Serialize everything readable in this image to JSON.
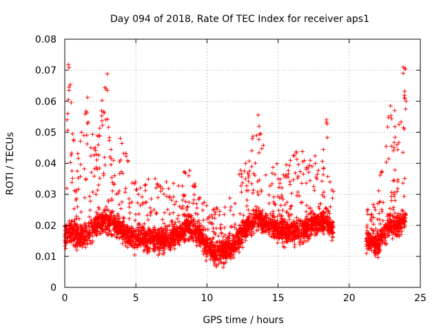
{
  "chart_data": {
    "type": "scatter",
    "title": "Day 094 of 2018, Rate Of TEC Index for receiver aps1",
    "xlabel": "GPS time / hours",
    "ylabel": "ROTI / TECUs",
    "xlim": [
      0,
      25
    ],
    "ylim": [
      0,
      0.08
    ],
    "x_ticks": [
      0,
      5,
      10,
      15,
      20,
      25
    ],
    "y_ticks": [
      0,
      0.01,
      0.02,
      0.03,
      0.04,
      0.05,
      0.06,
      0.07,
      0.08
    ],
    "x_tick_labels": [
      "0",
      "5",
      "10",
      "15",
      "20",
      "25"
    ],
    "y_tick_labels": [
      "0",
      "0.01",
      "0.02",
      "0.03",
      "0.04",
      "0.05",
      "0.06",
      "0.07",
      "0.08"
    ],
    "grid": true,
    "marker": "plus",
    "color": "#ff0000",
    "coverage_hours": [
      [
        0,
        18.9
      ],
      [
        21.2,
        24
      ]
    ],
    "density_profile": [
      [
        0.0,
        0.016,
        0.042
      ],
      [
        0.3,
        0.018,
        0.072
      ],
      [
        0.8,
        0.016,
        0.04
      ],
      [
        1.5,
        0.017,
        0.06
      ],
      [
        2.2,
        0.02,
        0.045
      ],
      [
        2.8,
        0.022,
        0.068
      ],
      [
        3.5,
        0.02,
        0.04
      ],
      [
        4.0,
        0.018,
        0.048
      ],
      [
        5.0,
        0.016,
        0.035
      ],
      [
        6.0,
        0.016,
        0.035
      ],
      [
        7.0,
        0.015,
        0.036
      ],
      [
        8.0,
        0.017,
        0.035
      ],
      [
        8.8,
        0.02,
        0.04
      ],
      [
        9.5,
        0.016,
        0.03
      ],
      [
        10.5,
        0.011,
        0.026
      ],
      [
        11.5,
        0.012,
        0.028
      ],
      [
        12.5,
        0.018,
        0.04
      ],
      [
        13.5,
        0.022,
        0.055
      ],
      [
        14.5,
        0.02,
        0.04
      ],
      [
        15.5,
        0.018,
        0.04
      ],
      [
        16.5,
        0.018,
        0.045
      ],
      [
        17.5,
        0.02,
        0.042
      ],
      [
        18.4,
        0.022,
        0.054
      ],
      [
        18.9,
        0.018,
        0.04
      ],
      [
        21.2,
        0.015,
        0.026
      ],
      [
        22.0,
        0.014,
        0.03
      ],
      [
        22.8,
        0.02,
        0.058
      ],
      [
        23.4,
        0.02,
        0.05
      ],
      [
        23.9,
        0.022,
        0.071
      ]
    ],
    "extreme_points": [
      [
        0.25,
        0.0718
      ],
      [
        0.3,
        0.0708
      ],
      [
        0.3,
        0.0645
      ],
      [
        0.3,
        0.0635
      ],
      [
        0.25,
        0.0605
      ],
      [
        1.6,
        0.0612
      ],
      [
        1.5,
        0.0568
      ],
      [
        1.6,
        0.0528
      ],
      [
        2.6,
        0.0553
      ],
      [
        3.0,
        0.0688
      ],
      [
        2.9,
        0.064
      ],
      [
        3.0,
        0.0635
      ],
      [
        3.9,
        0.048
      ],
      [
        13.6,
        0.0556
      ],
      [
        18.4,
        0.054
      ],
      [
        18.4,
        0.0532
      ],
      [
        22.9,
        0.0585
      ],
      [
        23.2,
        0.057
      ],
      [
        23.5,
        0.0525
      ],
      [
        23.8,
        0.071
      ],
      [
        23.9,
        0.0705
      ],
      [
        23.8,
        0.069
      ],
      [
        23.9,
        0.0632
      ],
      [
        24.0,
        0.06
      ]
    ]
  }
}
